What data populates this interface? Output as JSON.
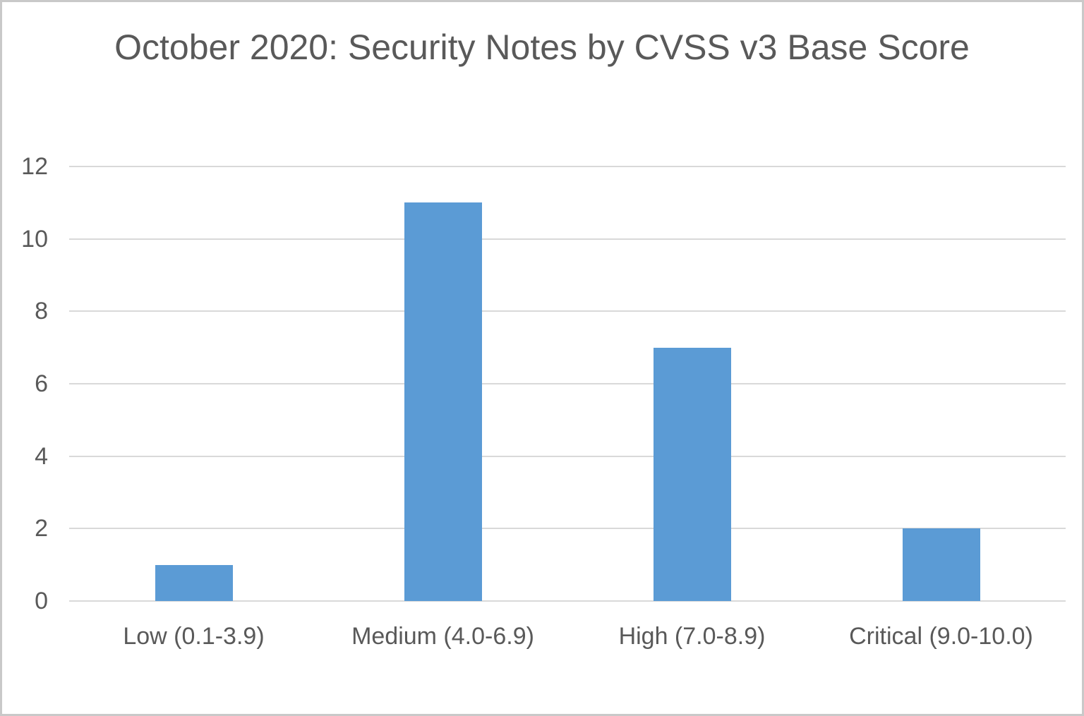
{
  "frame": {
    "background_color": "#ffffff",
    "border_color": "#c9c9c9"
  },
  "chart_data": {
    "type": "bar",
    "title": "October 2020: Security Notes by CVSS v3 Base Score",
    "categories": [
      "Low (0.1-3.9)",
      "Medium (4.0-6.9)",
      "High (7.0-8.9)",
      "Critical (9.0-10.0)"
    ],
    "values": [
      1,
      11,
      7,
      2
    ],
    "xlabel": "",
    "ylabel": "",
    "ylim": [
      0,
      12
    ],
    "yticks": [
      0,
      2,
      4,
      6,
      8,
      10,
      12
    ],
    "grid": true,
    "legend_position": "none",
    "bar_color": "#5b9bd5",
    "gridline_color": "#d9d9d9",
    "text_color": "#595959"
  }
}
